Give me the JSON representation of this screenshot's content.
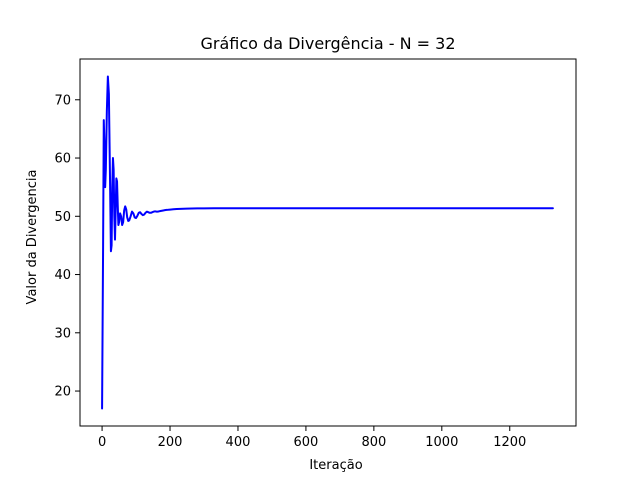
{
  "chart_data": {
    "type": "line",
    "title": "Gráfico da Divergência - N = 32",
    "xlabel": "Iteração",
    "ylabel": "Valor da Divergencia",
    "xlim": [
      -65,
      1395
    ],
    "ylim": [
      14,
      77
    ],
    "xticks": [
      0,
      200,
      400,
      600,
      800,
      1000,
      1200
    ],
    "yticks": [
      20,
      30,
      40,
      50,
      60,
      70
    ],
    "grid": false,
    "series": [
      {
        "color": "#0000ff",
        "x": [
          0,
          3,
          5,
          7,
          9,
          11,
          14,
          17,
          20,
          23,
          26,
          28,
          30,
          32,
          34,
          36,
          38,
          40,
          42,
          44,
          46,
          48,
          50,
          53,
          56,
          59,
          62,
          65,
          68,
          71,
          74,
          77,
          80,
          84,
          88,
          92,
          96,
          100,
          104,
          108,
          112,
          116,
          120,
          124,
          128,
          132,
          136,
          140,
          144,
          148,
          152,
          156,
          160,
          164,
          168,
          172,
          176,
          180,
          185,
          190,
          195,
          200,
          210,
          220,
          230,
          240,
          250,
          265,
          280,
          300,
          330,
          360,
          400,
          450,
          500,
          600,
          700,
          800,
          900,
          1000,
          1100,
          1200,
          1300,
          1327
        ],
        "y": [
          17,
          45,
          66.5,
          62,
          55,
          58,
          68,
          74,
          71,
          58,
          44,
          45,
          55,
          60,
          58,
          50,
          46,
          51,
          56.5,
          56,
          52,
          48.5,
          49,
          50.5,
          50,
          48.5,
          49,
          51,
          51.7,
          51.2,
          49.8,
          49.2,
          49.3,
          50,
          50.8,
          50.5,
          49.8,
          49.7,
          50.1,
          50.6,
          50.7,
          50.4,
          50.2,
          50.3,
          50.6,
          50.8,
          50.7,
          50.6,
          50.6,
          50.7,
          50.8,
          50.85,
          50.8,
          50.8,
          50.85,
          50.9,
          50.95,
          51,
          51.05,
          51.1,
          51.12,
          51.15,
          51.2,
          51.25,
          51.28,
          51.3,
          51.32,
          51.34,
          51.35,
          51.36,
          51.37,
          51.38,
          51.38,
          51.38,
          51.38,
          51.38,
          51.38,
          51.38,
          51.38,
          51.38,
          51.38,
          51.38,
          51.38,
          51.38
        ]
      }
    ]
  }
}
